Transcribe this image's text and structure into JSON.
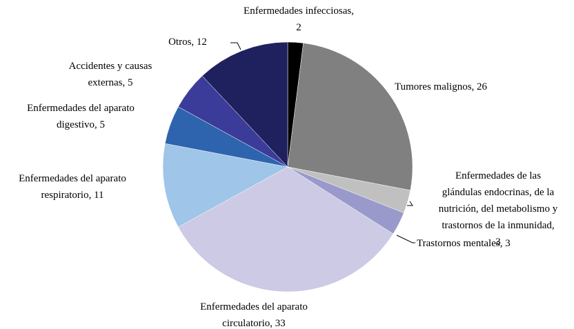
{
  "chart_data": {
    "type": "pie",
    "values": [
      2,
      26,
      3,
      3,
      33,
      11,
      5,
      5,
      12
    ],
    "value_labels": [
      "Enfermedades infecciosas,\n2",
      "Tumores malignos, 26",
      "Enfermedades de las\nglándulas endocrinas, de la\nnutrición, del metabolismo y\ntrastornos de la inmunidad,\n3",
      "Trastornos mentales, 3",
      "Enfermedades del aparato\ncirculatorio, 33",
      "Enfermedades del aparato\nrespiratorio, 11",
      "Enfermedades del aparato\ndigestivo, 5",
      "Accidentes y causas\nexternas, 5",
      "Otros, 12"
    ],
    "colors": [
      "#000000",
      "#808080",
      "#c0c0c0",
      "#9999cc",
      "#cccae4",
      "#9fc5e8",
      "#2e64ae",
      "#3b3b9a",
      "#1f215e"
    ]
  }
}
